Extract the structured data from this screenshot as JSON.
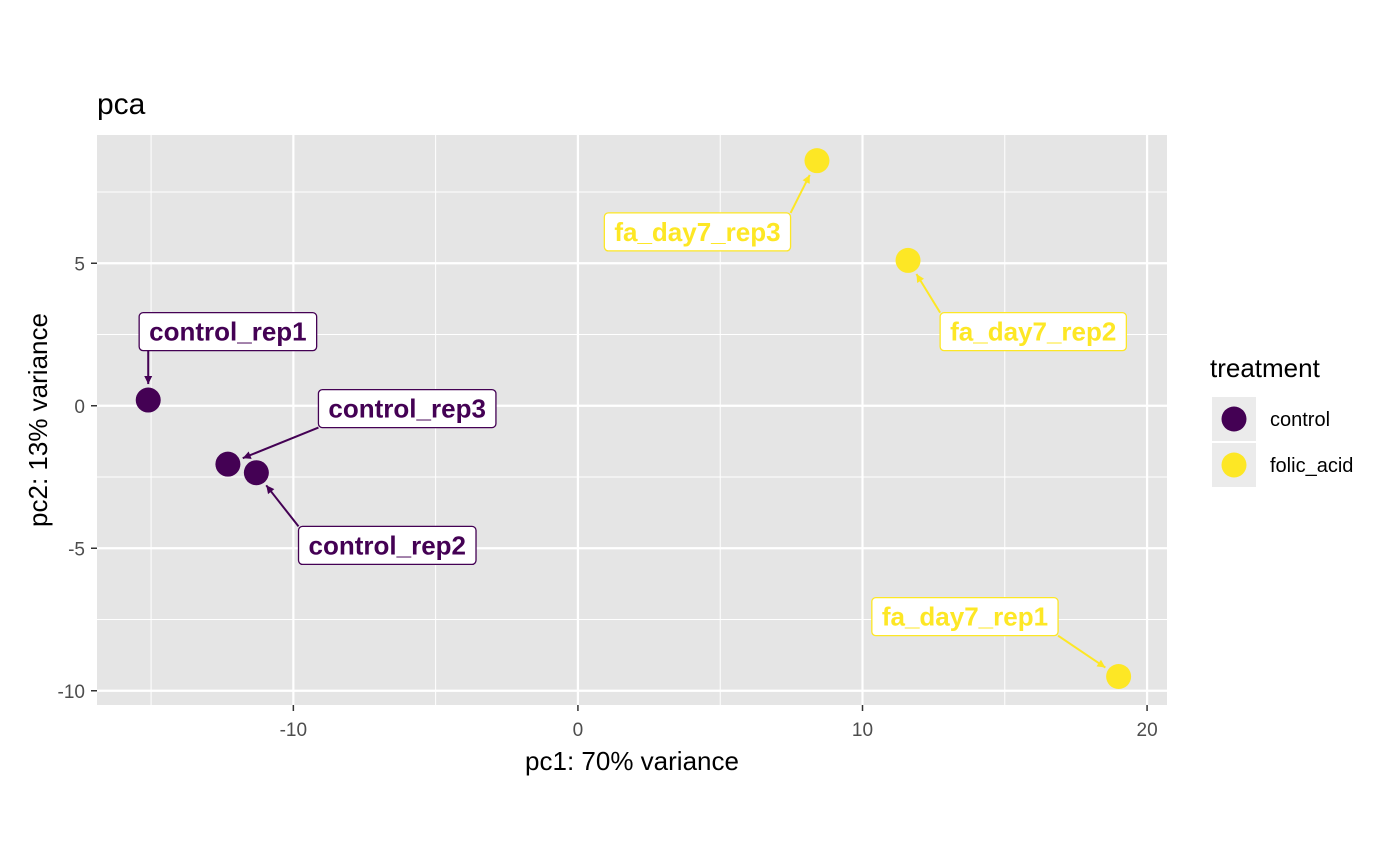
{
  "chart_data": {
    "type": "scatter",
    "title": "pca",
    "xlabel": "pc1: 70% variance",
    "ylabel": "pc2: 13% variance",
    "xlim": [
      -16.9,
      20.7
    ],
    "ylim": [
      -10.5,
      9.5
    ],
    "x_ticks": [
      -10,
      0,
      10,
      20
    ],
    "y_ticks": [
      -10,
      -5,
      0,
      5
    ],
    "x_tick_labels": [
      "-10",
      "0",
      "10",
      "20"
    ],
    "y_tick_labels": [
      "-10",
      "-5",
      "0",
      "5"
    ],
    "grid": true,
    "legend": {
      "title": "treatment",
      "position": "right",
      "entries": [
        {
          "label": "control",
          "color": "#440154"
        },
        {
          "label": "folic_acid",
          "color": "#FDE725"
        }
      ]
    },
    "points": [
      {
        "label": "control_rep1",
        "group": "control",
        "x": -15.1,
        "y": 0.2,
        "label_x": -12.3,
        "label_y": 2.6
      },
      {
        "label": "control_rep3",
        "group": "control",
        "x": -12.3,
        "y": -2.05,
        "label_x": -6.0,
        "label_y": -0.1
      },
      {
        "label": "control_rep2",
        "group": "control",
        "x": -11.3,
        "y": -2.35,
        "label_x": -6.7,
        "label_y": -4.9
      },
      {
        "label": "fa_day7_rep3",
        "group": "folic_acid",
        "x": 8.4,
        "y": 8.6,
        "label_x": 4.2,
        "label_y": 6.1
      },
      {
        "label": "fa_day7_rep2",
        "group": "folic_acid",
        "x": 11.6,
        "y": 5.1,
        "label_x": 16.0,
        "label_y": 2.6
      },
      {
        "label": "fa_day7_rep1",
        "group": "folic_acid",
        "x": 19.0,
        "y": -9.5,
        "label_x": 13.6,
        "label_y": -7.4
      }
    ]
  }
}
